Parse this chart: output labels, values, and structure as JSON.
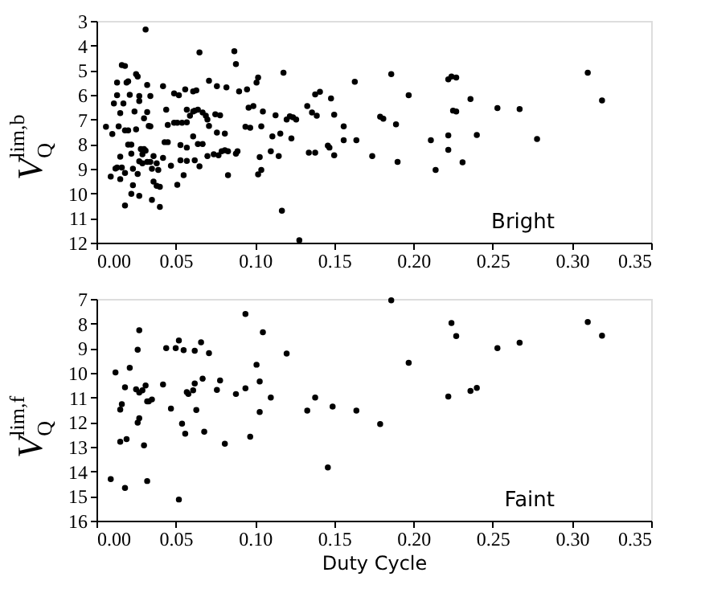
{
  "chart_data": [
    {
      "type": "scatter",
      "ylabel": "V$_{Q}$$^{lim,b}$",
      "annotations": [
        "Bright"
      ],
      "color": "#000000",
      "marker": "circle",
      "grid": false,
      "x": [
        0.031,
        0.065,
        0.087,
        0.088,
        0.016,
        0.018,
        0.118,
        0.163,
        0.013,
        0.019,
        0.02,
        0.025,
        0.026,
        0.032,
        0.042,
        0.071,
        0.082,
        0.076,
        0.102,
        0.101,
        0.095,
        0.09,
        0.061,
        0.063,
        0.056,
        0.049,
        0.052,
        0.013,
        0.021,
        0.034,
        0.027,
        0.027,
        0.017,
        0.011,
        0.015,
        0.024,
        0.032,
        0.03,
        0.044,
        0.057,
        0.061,
        0.062,
        0.064,
        0.059,
        0.067,
        0.069,
        0.07,
        0.075,
        0.078,
        0.096,
        0.099,
        0.105,
        0.113,
        0.12,
        0.122,
        0.124,
        0.126,
        0.133,
        0.138,
        0.141,
        0.136,
        0.139,
        0.148,
        0.15,
        0.156,
        0.01,
        0.006,
        0.014,
        0.02,
        0.018,
        0.033,
        0.034,
        0.025,
        0.045,
        0.049,
        0.051,
        0.054,
        0.057,
        0.071,
        0.076,
        0.081,
        0.094,
        0.097,
        0.104,
        0.111,
        0.116,
        0.043,
        0.045,
        0.057,
        0.053,
        0.064,
        0.067,
        0.061,
        0.02,
        0.022,
        0.015,
        0.022,
        0.028,
        0.03,
        0.031,
        0.029,
        0.027,
        0.029,
        0.032,
        0.034,
        0.038,
        0.042,
        0.036,
        0.039,
        0.047,
        0.053,
        0.057,
        0.062,
        0.065,
        0.07,
        0.074,
        0.077,
        0.079,
        0.081,
        0.083,
        0.088,
        0.089,
        0.103,
        0.11,
        0.115,
        0.123,
        0.146,
        0.147,
        0.15,
        0.134,
        0.138,
        0.156,
        0.164,
        0.013,
        0.016,
        0.012,
        0.023,
        0.009,
        0.018,
        0.015,
        0.026,
        0.035,
        0.036,
        0.038,
        0.04,
        0.051,
        0.055,
        0.083,
        0.102,
        0.104,
        0.023,
        0.022,
        0.027,
        0.035,
        0.04,
        0.018,
        0.117,
        0.128,
        0.174,
        0.186,
        0.197,
        0.179,
        0.181,
        0.189,
        0.19,
        0.211,
        0.214,
        0.222,
        0.224,
        0.227,
        0.222,
        0.222,
        0.225,
        0.227,
        0.236,
        0.24,
        0.231,
        0.253,
        0.267,
        0.278,
        0.31,
        0.319
      ],
      "values": [
        3.35,
        4.28,
        4.23,
        4.75,
        4.79,
        4.83,
        5.1,
        5.47,
        5.5,
        5.5,
        5.45,
        5.16,
        5.26,
        5.6,
        5.65,
        5.43,
        5.7,
        5.65,
        5.3,
        5.5,
        5.78,
        5.86,
        5.86,
        5.82,
        5.78,
        5.94,
        6.02,
        6.02,
        6.0,
        6.05,
        6.05,
        6.25,
        6.35,
        6.35,
        6.74,
        6.68,
        6.7,
        6.95,
        6.6,
        6.6,
        6.68,
        6.64,
        6.6,
        6.85,
        6.72,
        6.85,
        7.0,
        6.79,
        6.83,
        6.52,
        6.46,
        6.68,
        6.83,
        7.0,
        6.87,
        6.91,
        7.0,
        6.46,
        5.98,
        5.88,
        6.72,
        6.85,
        6.15,
        6.81,
        7.28,
        7.59,
        7.3,
        7.28,
        7.44,
        7.44,
        7.26,
        7.28,
        7.4,
        7.22,
        7.13,
        7.13,
        7.13,
        7.12,
        7.26,
        7.53,
        7.57,
        7.3,
        7.34,
        7.28,
        7.69,
        7.57,
        7.92,
        7.92,
        8.14,
        8.04,
        8.0,
        8.0,
        7.69,
        8.02,
        8.02,
        8.51,
        8.39,
        8.2,
        8.2,
        8.27,
        8.41,
        8.7,
        8.78,
        8.72,
        8.72,
        8.78,
        8.56,
        8.49,
        9.05,
        8.88,
        8.66,
        8.68,
        8.66,
        8.9,
        8.49,
        8.41,
        8.45,
        8.29,
        8.25,
        8.29,
        8.39,
        8.29,
        8.53,
        8.29,
        8.49,
        7.77,
        8.06,
        8.14,
        8.45,
        8.35,
        8.35,
        7.84,
        7.84,
        8.95,
        8.95,
        8.99,
        9.0,
        9.32,
        9.17,
        9.42,
        9.21,
        9.0,
        9.52,
        9.69,
        9.73,
        9.65,
        9.26,
        9.26,
        9.23,
        9.05,
        9.67,
        10.02,
        10.1,
        10.26,
        10.55,
        10.49,
        10.7,
        11.9,
        8.49,
        5.16,
        6.02,
        6.89,
        6.97,
        7.2,
        8.72,
        7.84,
        9.05,
        5.37,
        5.26,
        5.3,
        7.65,
        8.23,
        6.64,
        6.68,
        6.17,
        7.63,
        8.74,
        6.54,
        6.58,
        7.79,
        5.1,
        6.23
      ],
      "xlim": [
        0,
        0.35
      ],
      "ylim": [
        12,
        3
      ],
      "xticks": [
        {
          "value": 0,
          "label": "0.00"
        },
        {
          "value": 0.05,
          "label": "0.05"
        },
        {
          "value": 0.1,
          "label": "0.10"
        },
        {
          "value": 0.15,
          "label": "0.15"
        },
        {
          "value": 0.2,
          "label": "0.20"
        },
        {
          "value": 0.25,
          "label": "0.25"
        },
        {
          "value": 0.3,
          "label": "0.30"
        },
        {
          "value": 0.35,
          "label": "0.35"
        }
      ],
      "yticks": [
        3,
        4,
        5,
        6,
        7,
        8,
        9,
        10,
        11,
        12
      ]
    },
    {
      "type": "scatter",
      "xlabel": "Duty Cycle",
      "ylabel": "V$_{Q}$$^{lim,f}$",
      "annotations": [
        "Faint"
      ],
      "color": "#000000",
      "marker": "circle",
      "grid": false,
      "x": [
        0.094,
        0.027,
        0.105,
        0.052,
        0.066,
        0.026,
        0.044,
        0.05,
        0.055,
        0.062,
        0.071,
        0.12,
        0.101,
        0.021,
        0.012,
        0.067,
        0.078,
        0.103,
        0.062,
        0.042,
        0.018,
        0.025,
        0.027,
        0.029,
        0.031,
        0.061,
        0.057,
        0.058,
        0.076,
        0.094,
        0.088,
        0.11,
        0.138,
        0.032,
        0.033,
        0.035,
        0.016,
        0.015,
        0.047,
        0.063,
        0.103,
        0.133,
        0.149,
        0.164,
        0.027,
        0.026,
        0.054,
        0.056,
        0.068,
        0.015,
        0.019,
        0.03,
        0.081,
        0.097,
        0.146,
        0.009,
        0.018,
        0.032,
        0.052,
        0.186,
        0.224,
        0.227,
        0.31,
        0.319,
        0.253,
        0.267,
        0.197,
        0.222,
        0.236,
        0.24,
        0.179
      ],
      "values": [
        7.61,
        8.27,
        8.35,
        8.69,
        8.76,
        9.06,
        9.0,
        9.0,
        9.08,
        9.1,
        9.2,
        9.22,
        9.67,
        9.8,
        9.98,
        10.24,
        10.31,
        10.35,
        10.43,
        10.47,
        10.59,
        10.67,
        10.8,
        10.71,
        10.51,
        10.71,
        10.78,
        10.86,
        10.69,
        10.63,
        10.86,
        11.0,
        11.0,
        11.16,
        11.16,
        11.08,
        11.27,
        11.49,
        11.45,
        11.51,
        11.59,
        11.53,
        11.37,
        11.53,
        11.84,
        12.02,
        12.06,
        12.47,
        12.39,
        12.8,
        12.69,
        12.94,
        12.88,
        12.59,
        13.84,
        14.31,
        14.67,
        14.39,
        15.14,
        7.06,
        7.98,
        8.51,
        7.94,
        8.49,
        9.0,
        8.78,
        9.59,
        10.96,
        10.73,
        10.61,
        12.08
      ],
      "xlim": [
        0,
        0.35
      ],
      "ylim": [
        16,
        7
      ],
      "xticks": [
        {
          "value": 0,
          "label": "0.00"
        },
        {
          "value": 0.05,
          "label": "0.05"
        },
        {
          "value": 0.1,
          "label": "0.10"
        },
        {
          "value": 0.15,
          "label": "0.15"
        },
        {
          "value": 0.2,
          "label": "0.20"
        },
        {
          "value": 0.25,
          "label": "0.25"
        },
        {
          "value": 0.3,
          "label": "0.30"
        },
        {
          "value": 0.35,
          "label": "0.35"
        }
      ],
      "yticks": [
        7,
        8,
        9,
        10,
        11,
        12,
        13,
        14,
        15,
        16
      ]
    }
  ]
}
